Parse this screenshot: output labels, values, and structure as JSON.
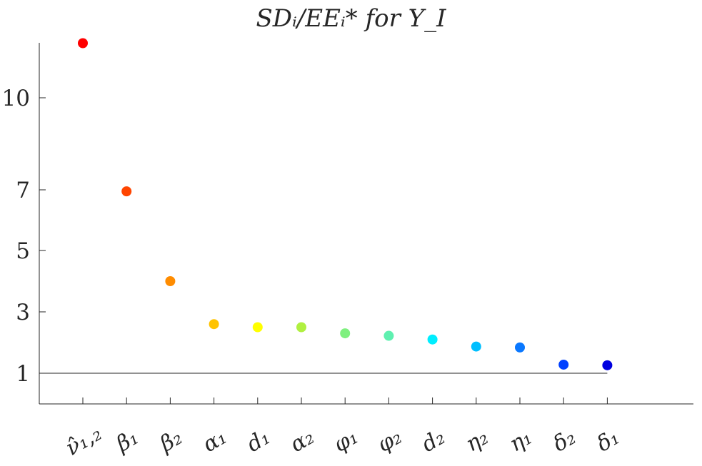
{
  "chart_data": {
    "type": "scatter",
    "title": "SDᵢ/EEᵢ* for Y_I",
    "xlabel": "",
    "ylabel": "",
    "categories": [
      "ν̂₁,₂",
      "β₁",
      "β₂",
      "α₁",
      "d₁",
      "α₂",
      "φ₁",
      "φ₂",
      "d₂",
      "η₂",
      "η₁",
      "δ₂",
      "δ₁"
    ],
    "values": [
      11.8,
      6.95,
      4.0,
      2.6,
      2.5,
      2.5,
      2.3,
      2.22,
      2.1,
      1.87,
      1.84,
      1.28,
      1.26
    ],
    "colors": [
      "#ff0000",
      "#ff4500",
      "#ff8c00",
      "#ffc300",
      "#ffff00",
      "#b0f040",
      "#7ff07f",
      "#5ff0b0",
      "#00eeff",
      "#00bfff",
      "#0a78ff",
      "#0040ff",
      "#0000e0"
    ],
    "y_ticks": [
      1,
      3,
      5,
      7,
      10
    ],
    "y_tick_labels": [
      "1",
      "3",
      "5",
      "7",
      "10"
    ],
    "reference_line": 1,
    "grid": false,
    "legend": "none",
    "y_scale": "nonlinear (compressed toward top)"
  }
}
